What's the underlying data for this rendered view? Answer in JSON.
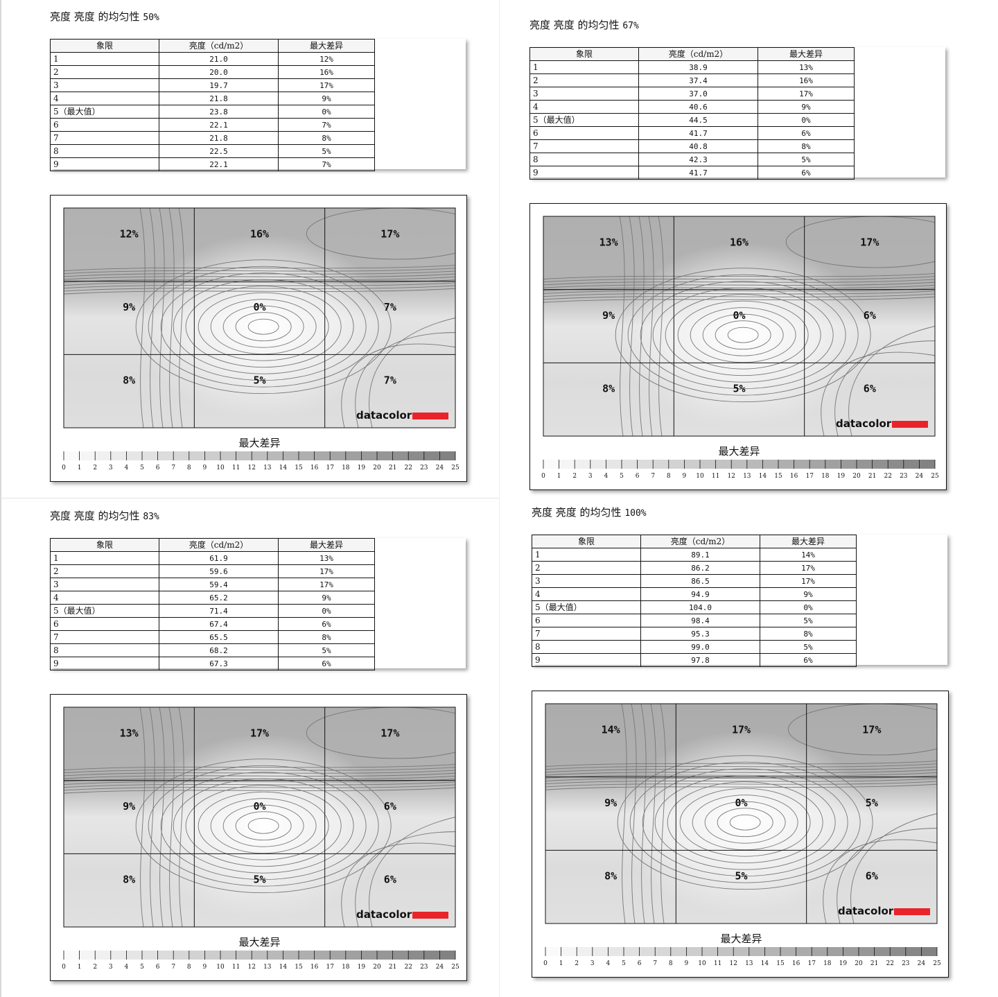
{
  "table_headers": [
    "象限",
    "亮度（cd/m2）",
    "最大差异"
  ],
  "legend_title": "最大差异",
  "logo": "datacolor",
  "scale_ticks": [
    0,
    1,
    2,
    3,
    4,
    5,
    6,
    7,
    8,
    9,
    10,
    11,
    12,
    13,
    14,
    15,
    16,
    17,
    18,
    19,
    20,
    21,
    22,
    23,
    24,
    25
  ],
  "chart_data": [
    {
      "type": "table",
      "title": "亮度 亮度 的均匀性",
      "level": "50%",
      "rows": [
        {
          "quadrant": "1",
          "luminance": "21.0",
          "max_diff": "12%"
        },
        {
          "quadrant": "2",
          "luminance": "20.0",
          "max_diff": "16%"
        },
        {
          "quadrant": "3",
          "luminance": "19.7",
          "max_diff": "17%"
        },
        {
          "quadrant": "4",
          "luminance": "21.8",
          "max_diff": "9%"
        },
        {
          "quadrant": "5（最大值）",
          "luminance": "23.8",
          "max_diff": "0%"
        },
        {
          "quadrant": "6",
          "luminance": "22.1",
          "max_diff": "7%"
        },
        {
          "quadrant": "7",
          "luminance": "21.8",
          "max_diff": "8%"
        },
        {
          "quadrant": "8",
          "luminance": "22.5",
          "max_diff": "5%"
        },
        {
          "quadrant": "9",
          "luminance": "22.1",
          "max_diff": "7%"
        }
      ],
      "grid_diffs": [
        [
          12,
          16,
          17
        ],
        [
          9,
          0,
          7
        ],
        [
          8,
          5,
          7
        ]
      ]
    },
    {
      "type": "table",
      "title": "亮度 亮度 的均匀性",
      "level": "67%",
      "rows": [
        {
          "quadrant": "1",
          "luminance": "38.9",
          "max_diff": "13%"
        },
        {
          "quadrant": "2",
          "luminance": "37.4",
          "max_diff": "16%"
        },
        {
          "quadrant": "3",
          "luminance": "37.0",
          "max_diff": "17%"
        },
        {
          "quadrant": "4",
          "luminance": "40.6",
          "max_diff": "9%"
        },
        {
          "quadrant": "5（最大值）",
          "luminance": "44.5",
          "max_diff": "0%"
        },
        {
          "quadrant": "6",
          "luminance": "41.7",
          "max_diff": "6%"
        },
        {
          "quadrant": "7",
          "luminance": "40.8",
          "max_diff": "8%"
        },
        {
          "quadrant": "8",
          "luminance": "42.3",
          "max_diff": "5%"
        },
        {
          "quadrant": "9",
          "luminance": "41.7",
          "max_diff": "6%"
        }
      ],
      "grid_diffs": [
        [
          13,
          16,
          17
        ],
        [
          9,
          0,
          6
        ],
        [
          8,
          5,
          6
        ]
      ]
    },
    {
      "type": "table",
      "title": "亮度 亮度 的均匀性",
      "level": "83%",
      "rows": [
        {
          "quadrant": "1",
          "luminance": "61.9",
          "max_diff": "13%"
        },
        {
          "quadrant": "2",
          "luminance": "59.6",
          "max_diff": "17%"
        },
        {
          "quadrant": "3",
          "luminance": "59.4",
          "max_diff": "17%"
        },
        {
          "quadrant": "4",
          "luminance": "65.2",
          "max_diff": "9%"
        },
        {
          "quadrant": "5（最大值）",
          "luminance": "71.4",
          "max_diff": "0%"
        },
        {
          "quadrant": "6",
          "luminance": "67.4",
          "max_diff": "6%"
        },
        {
          "quadrant": "7",
          "luminance": "65.5",
          "max_diff": "8%"
        },
        {
          "quadrant": "8",
          "luminance": "68.2",
          "max_diff": "5%"
        },
        {
          "quadrant": "9",
          "luminance": "67.3",
          "max_diff": "6%"
        }
      ],
      "grid_diffs": [
        [
          13,
          17,
          17
        ],
        [
          9,
          0,
          6
        ],
        [
          8,
          5,
          6
        ]
      ]
    },
    {
      "type": "table",
      "title": "亮度 亮度 的均匀性",
      "level": "100%",
      "rows": [
        {
          "quadrant": "1",
          "luminance": "89.1",
          "max_diff": "14%"
        },
        {
          "quadrant": "2",
          "luminance": "86.2",
          "max_diff": "17%"
        },
        {
          "quadrant": "3",
          "luminance": "86.5",
          "max_diff": "17%"
        },
        {
          "quadrant": "4",
          "luminance": "94.9",
          "max_diff": "9%"
        },
        {
          "quadrant": "5（最大值）",
          "luminance": "104.0",
          "max_diff": "0%"
        },
        {
          "quadrant": "6",
          "luminance": "98.4",
          "max_diff": "5%"
        },
        {
          "quadrant": "7",
          "luminance": "95.3",
          "max_diff": "8%"
        },
        {
          "quadrant": "8",
          "luminance": "99.0",
          "max_diff": "5%"
        },
        {
          "quadrant": "9",
          "luminance": "97.8",
          "max_diff": "6%"
        }
      ],
      "grid_diffs": [
        [
          14,
          17,
          17
        ],
        [
          9,
          0,
          5
        ],
        [
          8,
          5,
          6
        ]
      ]
    }
  ]
}
